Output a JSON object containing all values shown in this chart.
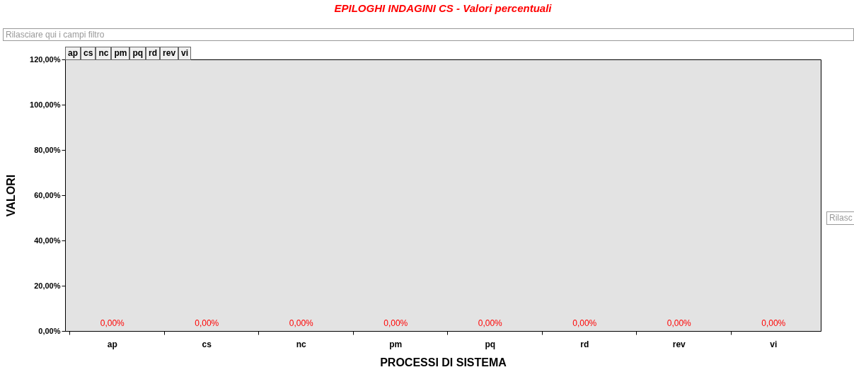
{
  "chart_data": {
    "type": "bar",
    "title": "EPILOGHI INDAGINI CS - Valori percentuali",
    "xlabel": "PROCESSI DI SISTEMA",
    "ylabel": "VALORI",
    "categories": [
      "ap",
      "cs",
      "nc",
      "pm",
      "pq",
      "rd",
      "rev",
      "vi"
    ],
    "values": [
      0,
      0,
      0,
      0,
      0,
      0,
      0,
      0
    ],
    "value_labels": [
      "0,00%",
      "0,00%",
      "0,00%",
      "0,00%",
      "0,00%",
      "0,00%",
      "0,00%",
      "0,00%"
    ],
    "ylim": [
      0,
      120
    ],
    "yticks": [
      {
        "value": 0,
        "label": "0,00%"
      },
      {
        "value": 20,
        "label": "20,00%"
      },
      {
        "value": 40,
        "label": "40,00%"
      },
      {
        "value": 60,
        "label": "60,00%"
      },
      {
        "value": 80,
        "label": "80,00%"
      },
      {
        "value": 100,
        "label": "100,00%"
      },
      {
        "value": 120,
        "label": "120,00%"
      }
    ],
    "annotations": [
      "Rilasciare qui i campi filtro",
      "ap",
      "cs",
      "nc",
      "pm",
      "pq",
      "rd",
      "rev",
      "vi",
      "Rilasc"
    ],
    "grid": false
  }
}
